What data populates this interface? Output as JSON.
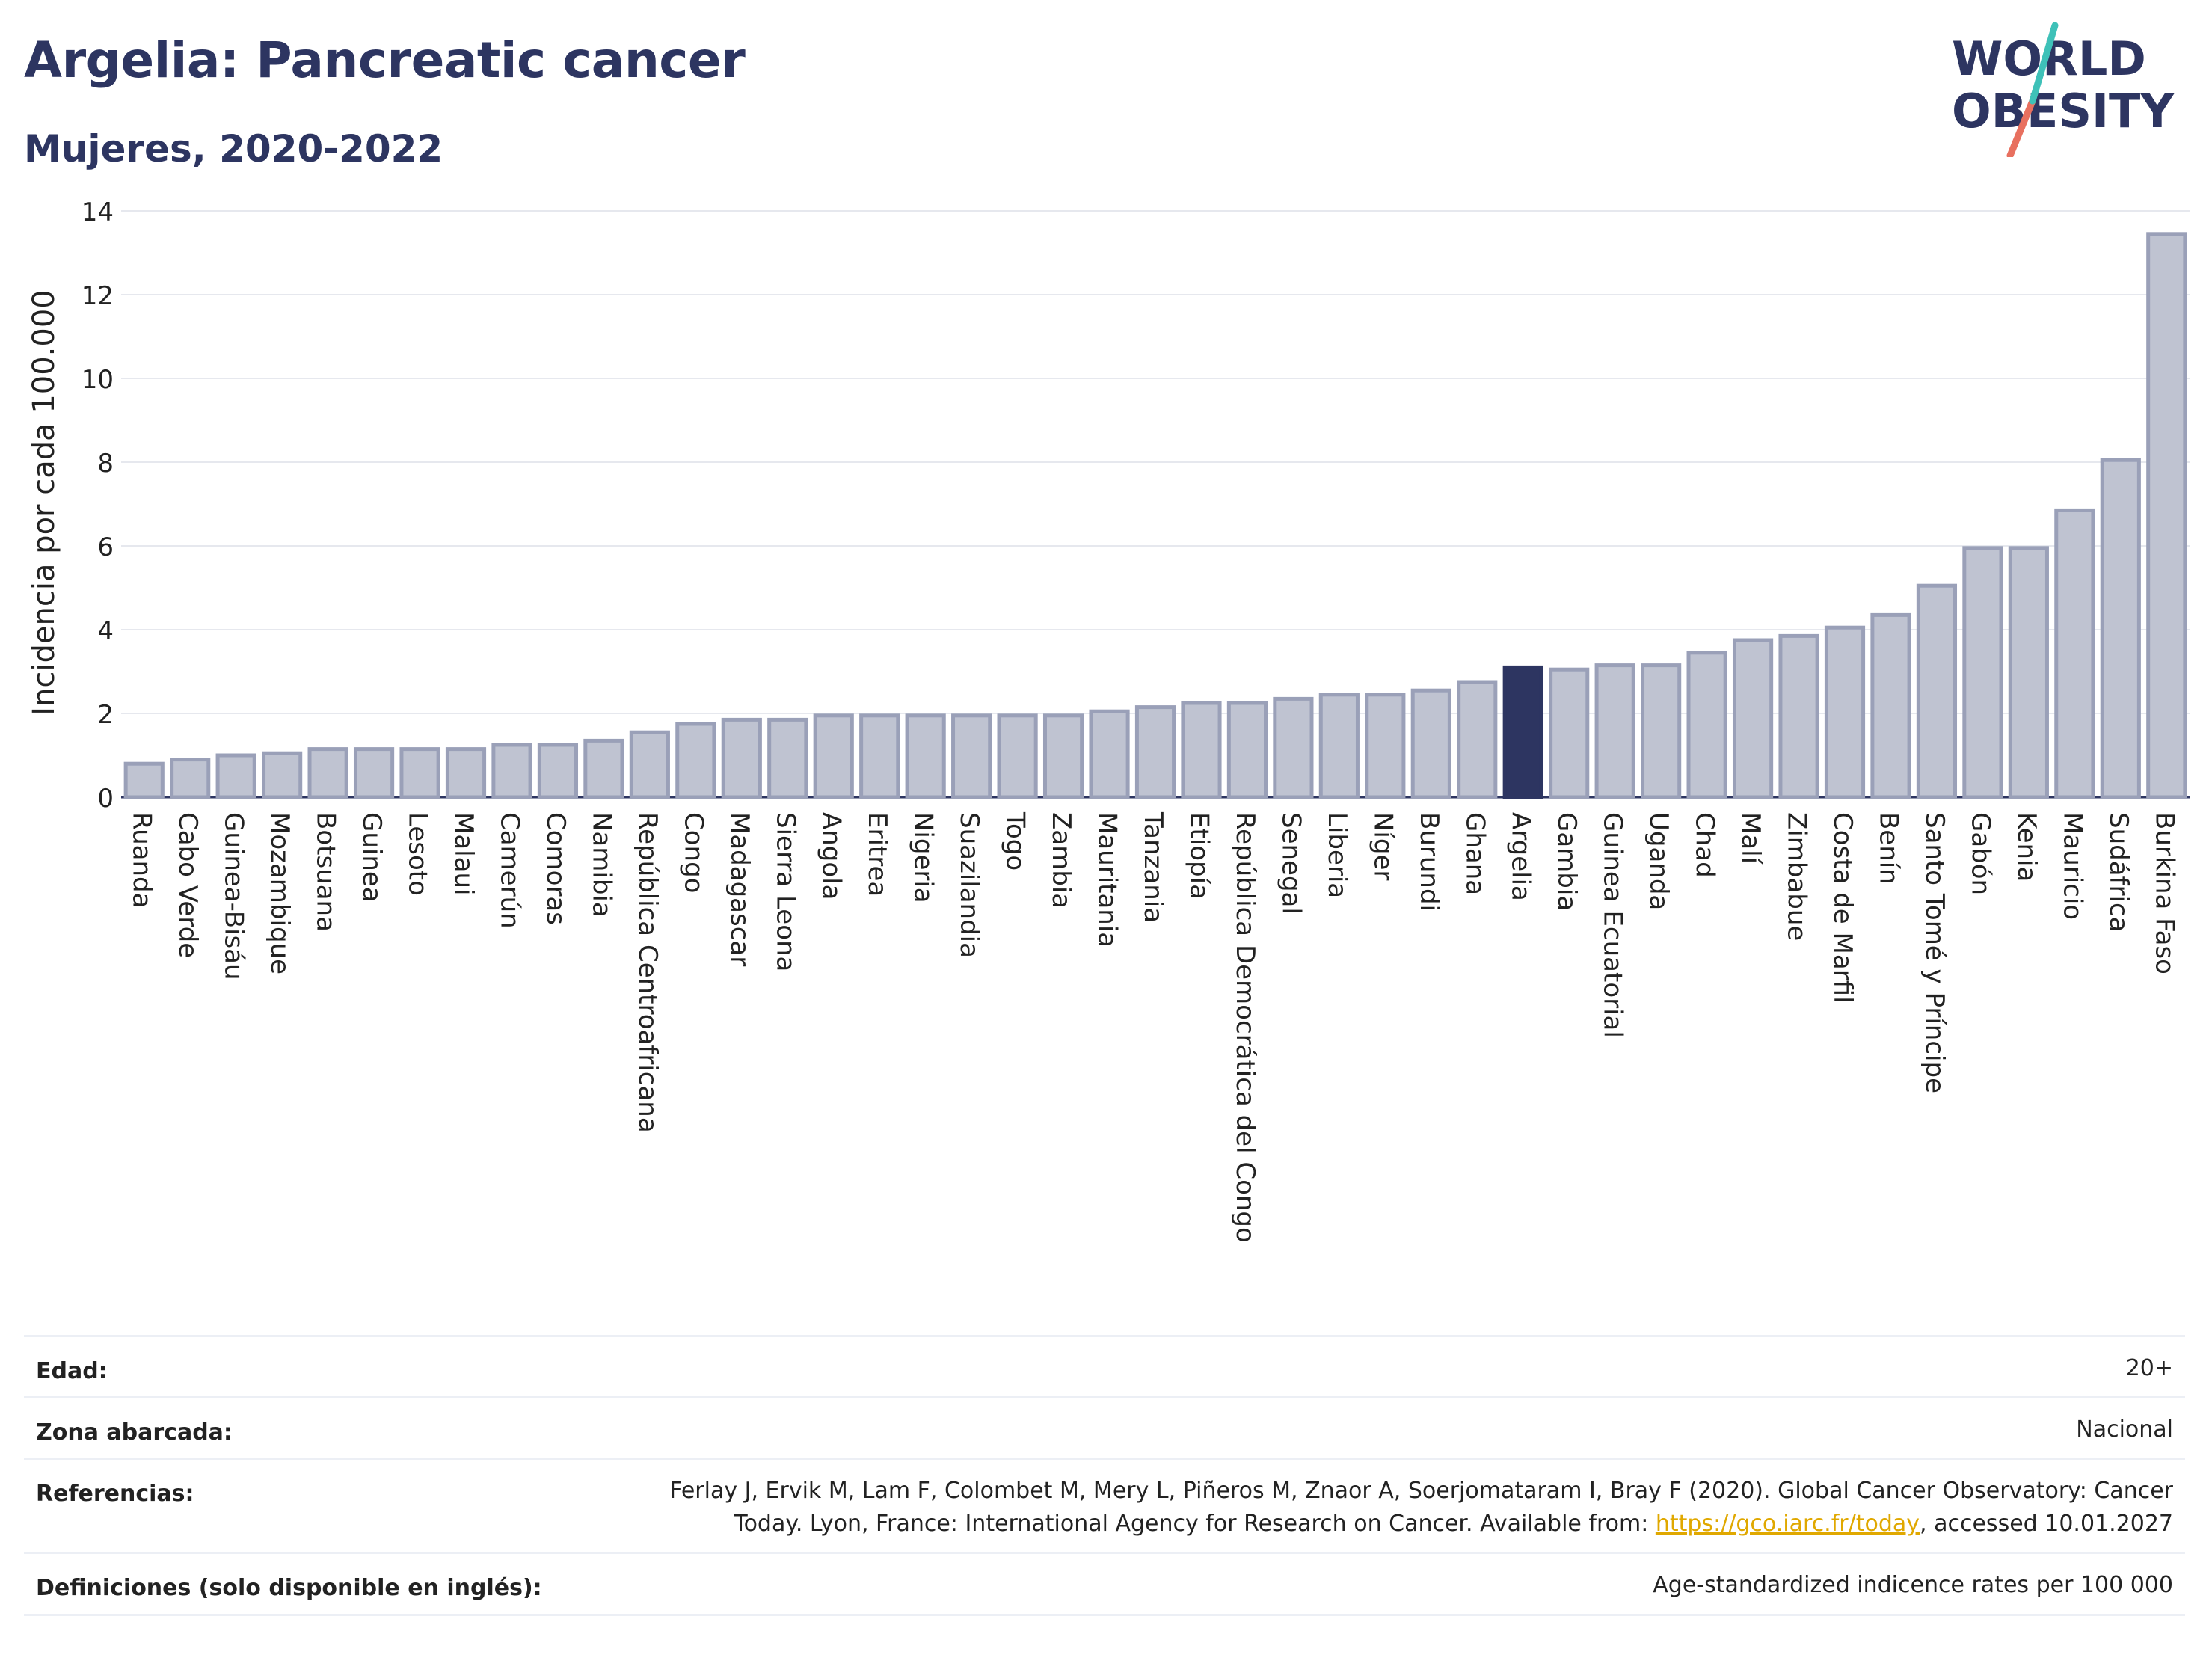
{
  "title": "Argelia: Pancreatic cancer",
  "subtitle": "Mujeres, 2020-2022",
  "logo": {
    "line1": "WORLD",
    "line2": "OBESITY"
  },
  "colors": {
    "highlight": "#2d3561",
    "bar": "#bfc3d1",
    "bar_border": "#9aa0b8",
    "title": "#2d3561",
    "link": "#e0a800"
  },
  "chart_data": {
    "type": "bar",
    "ylabel": "Incidencia por cada 100.000",
    "xlabel": "",
    "ylim": [
      0,
      14
    ],
    "yticks": [
      0,
      2,
      4,
      6,
      8,
      10,
      12,
      14
    ],
    "grid": true,
    "highlight": "Argelia",
    "categories": [
      "Ruanda",
      "Cabo Verde",
      "Guinea-Bisáu",
      "Mozambique",
      "Botsuana",
      "Guinea",
      "Lesoto",
      "Malaui",
      "Camerún",
      "Comoras",
      "Namibia",
      "República Centroafricana",
      "Congo",
      "Madagascar",
      "Sierra Leona",
      "Angola",
      "Eritrea",
      "Nigeria",
      "Suazilandia",
      "Togo",
      "Zambia",
      "Mauritania",
      "Tanzania",
      "Etiopía",
      "República Democrática del Congo",
      "Senegal",
      "Liberia",
      "Níger",
      "Burundi",
      "Ghana",
      "Argelia",
      "Gambia",
      "Guinea Ecuatorial",
      "Uganda",
      "Chad",
      "Malí",
      "Zimbabue",
      "Costa de Marfil",
      "Benín",
      "Santo Tomé y Príncipe",
      "Gabón",
      "Kenia",
      "Mauricio",
      "Sudáfrica",
      "Burkina Faso"
    ],
    "values": [
      0.8,
      0.9,
      1.0,
      1.05,
      1.15,
      1.15,
      1.15,
      1.15,
      1.25,
      1.25,
      1.35,
      1.55,
      1.75,
      1.85,
      1.85,
      1.95,
      1.95,
      1.95,
      1.95,
      1.95,
      1.95,
      2.05,
      2.15,
      2.25,
      2.25,
      2.35,
      2.45,
      2.45,
      2.55,
      2.75,
      3.1,
      3.05,
      3.15,
      3.15,
      3.45,
      3.75,
      3.85,
      4.05,
      4.35,
      5.05,
      5.95,
      5.95,
      6.85,
      8.05,
      13.45
    ]
  },
  "info": {
    "edad_label": "Edad:",
    "edad_value": "20+",
    "zona_label": "Zona abarcada:",
    "zona_value": "Nacional",
    "ref_label": "Referencias:",
    "ref_line1": "Ferlay J, Ervik M, Lam F, Colombet M, Mery L, Piñeros M, Znaor A, Soerjomataram I, Bray F (2020). Global Cancer Observatory: Cancer",
    "ref_line2_pre": "Today. Lyon, France: International Agency for Research on Cancer. Available from: ",
    "ref_link": "https://gco.iarc.fr/today",
    "ref_line2_post": ", accessed 10.01.2027",
    "def_label": "Definiciones (solo disponible en inglés):",
    "def_value": "Age-standardized indicence rates per 100 000"
  }
}
